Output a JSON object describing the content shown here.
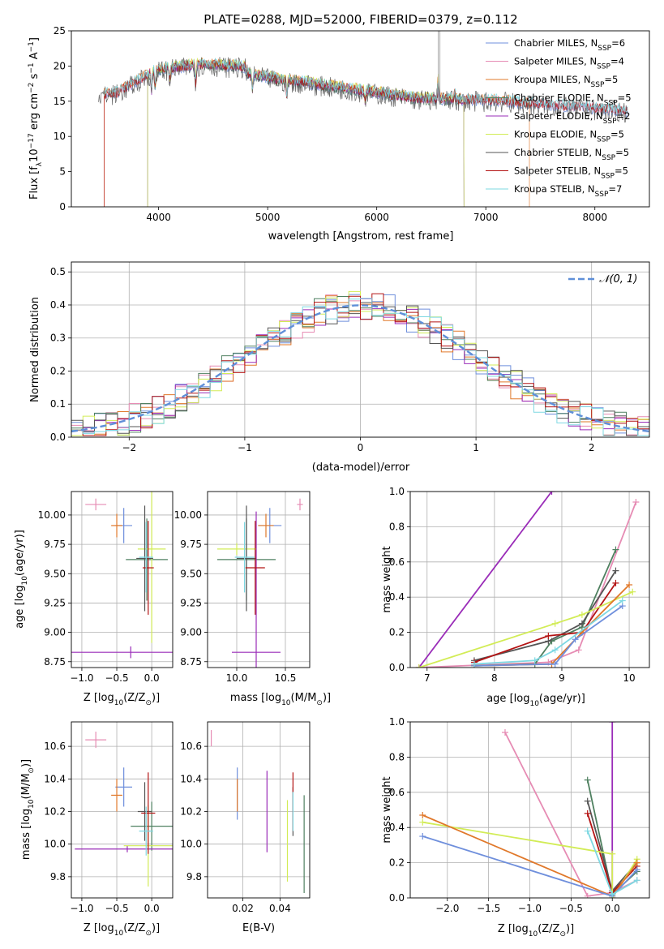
{
  "figure_title": "PLATE=0288, MJD=52000, FIBERID=0379, z=0.112",
  "colors": {
    "chabrier_miles": "#6f8fdc",
    "salpeter_miles": "#e68cb4",
    "kroupa_miles": "#e0782a",
    "chabrier_elodie": "#4f8060",
    "salpeter_elodie": "#9a2cb8",
    "kroupa_elodie": "#d2ec56",
    "chabrier_stelib": "#555555",
    "salpeter_stelib": "#b41414",
    "kroupa_stelib": "#7ed8e2",
    "gauss": "#5f8fd8"
  },
  "chart_data": [
    {
      "id": "spectrum",
      "type": "line",
      "xlabel": "wavelength [Angstrom, rest frame]",
      "ylabel": "Flux [f",
      "ylabel_sub": "λ",
      "ylabel_rest": "10",
      "ylabel_exp1": "−17",
      "ylabel_mid": " erg cm",
      "ylabel_exp2": "−2",
      "ylabel_s": " s",
      "ylabel_exp3": "−1",
      "ylabel_a": " A",
      "ylabel_exp4": "−1",
      "ylabel_end": "]",
      "xlim": [
        3200,
        8500
      ],
      "ylim": [
        0,
        25
      ],
      "xticks": [
        "4000",
        "5000",
        "6000",
        "7000",
        "8000"
      ],
      "yticks": [
        "0",
        "5",
        "10",
        "15",
        "20",
        "25"
      ],
      "legend_position": "top-right",
      "series": [
        {
          "key": "chabrier_miles",
          "name": "Chabrier MILES, N",
          "sub": "SSP",
          "n": "=6",
          "start": 3500,
          "end": 8300
        },
        {
          "key": "salpeter_miles",
          "name": "Salpeter MILES, N",
          "sub": "SSP",
          "n": "=4",
          "start": 3500,
          "end": 8300
        },
        {
          "key": "kroupa_miles",
          "name": "Kroupa MILES, N",
          "sub": "SSP",
          "n": "=5",
          "start": 3500,
          "end": 7400
        },
        {
          "key": "chabrier_elodie",
          "name": "Chabrier ELODIE, N",
          "sub": "SSP",
          "n": "=5",
          "start": 3900,
          "end": 6800
        },
        {
          "key": "salpeter_elodie",
          "name": "Salpeter ELODIE, N",
          "sub": "SSP",
          "n": "=2",
          "start": 3900,
          "end": 6800
        },
        {
          "key": "kroupa_elodie",
          "name": "Kroupa ELODIE, N",
          "sub": "SSP",
          "n": "=5",
          "start": 3900,
          "end": 6800
        },
        {
          "key": "chabrier_stelib",
          "name": "Chabrier STELIB, N",
          "sub": "SSP",
          "n": "=5",
          "start": 3450,
          "end": 8300
        },
        {
          "key": "salpeter_stelib",
          "name": "Salpeter STELIB, N",
          "sub": "SSP",
          "n": "=5",
          "start": 3500,
          "end": 8300
        },
        {
          "key": "kroupa_stelib",
          "name": "Kroupa STELIB, N",
          "sub": "SSP",
          "n": "=7",
          "start": 3500,
          "end": 8300
        }
      ]
    },
    {
      "id": "residuals",
      "type": "line",
      "xlabel": "(data-model)/error",
      "ylabel": "Normed distribution",
      "xlim": [
        -2.5,
        2.5
      ],
      "ylim": [
        0,
        0.53
      ],
      "grid": true,
      "xticks": [
        "−2",
        "−1",
        "0",
        "1",
        "2"
      ],
      "yticks": [
        "0.0",
        "0.1",
        "0.2",
        "0.3",
        "0.4",
        "0.5"
      ],
      "legend_position": "top-right",
      "legend_label": "𝒩(0, 1)",
      "bin_width": 0.1
    },
    {
      "id": "age_vs_z",
      "type": "scatter",
      "xlabel": "Z [log",
      "xlabel_sub": "10",
      "xlabel_rest": "(Z/Z",
      "xlabel_sub2": "⊙",
      "xlabel_end": ")]",
      "ylabel": "age  [log",
      "ylabel_sub": "10",
      "ylabel_rest": "(age/yr)]",
      "xlim": [
        -1.15,
        0.3
      ],
      "ylim": [
        8.7,
        10.2
      ],
      "xticks": [
        "−1.0",
        "−0.5",
        "0.0"
      ],
      "yticks": [
        "8.75",
        "9.00",
        "9.25",
        "9.50",
        "9.75",
        "10.00"
      ],
      "points": [
        {
          "key": "chabrier_miles",
          "x": -0.4,
          "y": 9.91,
          "xerr": 0.12,
          "yerr": 0.15
        },
        {
          "key": "kroupa_miles",
          "x": -0.5,
          "y": 9.91,
          "xerr": 0.08,
          "yerr": 0.1
        },
        {
          "key": "salpeter_miles",
          "x": -0.8,
          "y": 10.09,
          "xerr": 0.15,
          "yerr": 0.05
        },
        {
          "key": "chabrier_elodie",
          "x": -0.07,
          "y": 9.62,
          "xerr": 0.3,
          "yerr": 0.35
        },
        {
          "key": "salpeter_elodie",
          "x": -0.3,
          "y": 8.83,
          "xerr": 0.9,
          "yerr": 0.05
        },
        {
          "key": "kroupa_elodie",
          "x": 0.0,
          "y": 9.71,
          "xerr": 0.2,
          "yerr": 0.8
        },
        {
          "key": "chabrier_stelib",
          "x": -0.1,
          "y": 9.63,
          "xerr": 0.12,
          "yerr": 0.45
        },
        {
          "key": "salpeter_stelib",
          "x": -0.05,
          "y": 9.55,
          "xerr": 0.08,
          "yerr": 0.4
        },
        {
          "key": "kroupa_stelib",
          "x": -0.08,
          "y": 9.64,
          "xerr": 0.1,
          "yerr": 0.3
        }
      ]
    },
    {
      "id": "age_vs_mass",
      "type": "scatter",
      "xlabel": "mass [log",
      "xlabel_sub": "10",
      "xlabel_rest": "(M/M",
      "xlabel_sub2": "⊙",
      "xlabel_end": ")]",
      "xlim": [
        9.7,
        10.75
      ],
      "ylim": [
        8.7,
        10.2
      ],
      "xticks": [
        "10.0",
        "10.5"
      ],
      "yticks": [
        "8.75",
        "9.00",
        "9.25",
        "9.50",
        "9.75",
        "10.00"
      ],
      "points": [
        {
          "key": "chabrier_miles",
          "x": 10.34,
          "y": 9.91,
          "xerr": 0.12,
          "yerr": 0.15
        },
        {
          "key": "kroupa_miles",
          "x": 10.3,
          "y": 9.91,
          "xerr": 0.08,
          "yerr": 0.1
        },
        {
          "key": "salpeter_miles",
          "x": 10.65,
          "y": 10.09,
          "xerr": 0.03,
          "yerr": 0.05
        },
        {
          "key": "chabrier_elodie",
          "x": 10.1,
          "y": 9.62,
          "xerr": 0.3,
          "yerr": 0.35
        },
        {
          "key": "salpeter_elodie",
          "x": 10.2,
          "y": 8.83,
          "xerr": 0.25,
          "yerr": 1.2
        },
        {
          "key": "kroupa_elodie",
          "x": 10.0,
          "y": 9.71,
          "xerr": 0.2,
          "yerr": 0.05
        },
        {
          "key": "chabrier_stelib",
          "x": 10.1,
          "y": 9.63,
          "xerr": 0.1,
          "yerr": 0.45
        },
        {
          "key": "salpeter_stelib",
          "x": 10.19,
          "y": 9.55,
          "xerr": 0.1,
          "yerr": 0.4
        },
        {
          "key": "kroupa_stelib",
          "x": 10.08,
          "y": 9.64,
          "xerr": 0.1,
          "yerr": 0.3
        }
      ]
    },
    {
      "id": "weight_vs_age",
      "type": "line",
      "xlabel": "age  [log",
      "xlabel_sub": "10",
      "xlabel_rest": "(age/yr)]",
      "ylabel": "mass weight",
      "xlim": [
        6.75,
        10.3
      ],
      "ylim": [
        0,
        1
      ],
      "grid": true,
      "xticks": [
        "7",
        "8",
        "9",
        "10"
      ],
      "yticks": [
        "0.0",
        "0.2",
        "0.4",
        "0.6",
        "0.8",
        "1.0"
      ],
      "series": [
        {
          "key": "salpeter_elodie",
          "x": [
            6.88,
            8.85
          ],
          "y": [
            0.0,
            1.0
          ]
        },
        {
          "key": "salpeter_miles",
          "x": [
            6.88,
            8.8,
            9.25,
            10.1
          ],
          "y": [
            0.0,
            0.03,
            0.1,
            0.94
          ]
        },
        {
          "key": "chabrier_elodie",
          "x": [
            7.7,
            8.6,
            8.85,
            9.3,
            9.8
          ],
          "y": [
            0.01,
            0.02,
            0.15,
            0.23,
            0.67
          ]
        },
        {
          "key": "chabrier_stelib",
          "x": [
            7.7,
            8.8,
            9.3,
            9.8
          ],
          "y": [
            0.04,
            0.15,
            0.25,
            0.55
          ]
        },
        {
          "key": "salpeter_stelib",
          "x": [
            7.7,
            8.8,
            9.3,
            9.8
          ],
          "y": [
            0.03,
            0.18,
            0.2,
            0.48
          ]
        },
        {
          "key": "kroupa_elodie",
          "x": [
            6.88,
            8.9,
            9.3,
            10.05
          ],
          "y": [
            0.0,
            0.25,
            0.3,
            0.43
          ]
        },
        {
          "key": "kroupa_miles",
          "x": [
            7.7,
            8.85,
            9.3,
            10.0
          ],
          "y": [
            0.01,
            0.02,
            0.2,
            0.47
          ]
        },
        {
          "key": "chabrier_miles",
          "x": [
            7.7,
            8.9,
            9.2,
            9.9
          ],
          "y": [
            0.01,
            0.02,
            0.16,
            0.35
          ]
        },
        {
          "key": "kroupa_stelib",
          "x": [
            7.7,
            8.6,
            8.9,
            9.9
          ],
          "y": [
            0.02,
            0.04,
            0.1,
            0.38
          ]
        }
      ]
    },
    {
      "id": "mass_vs_z",
      "type": "scatter",
      "xlabel": "Z [log",
      "xlabel_sub": "10",
      "xlabel_rest": "(Z/Z",
      "xlabel_sub2": "⊙",
      "xlabel_end": ")]",
      "ylabel": "mass [log",
      "ylabel_sub": "10",
      "ylabel_rest": "(M/M",
      "ylabel_sub2": "⊙",
      "ylabel_end": ")]",
      "xlim": [
        -1.15,
        0.3
      ],
      "ylim": [
        9.67,
        10.75
      ],
      "xticks": [
        "−1.0",
        "−0.5",
        "0.0"
      ],
      "yticks": [
        "9.8",
        "10.0",
        "10.2",
        "10.4",
        "10.6"
      ],
      "points": [
        {
          "key": "chabrier_miles",
          "x": -0.4,
          "y": 10.35,
          "xerr": 0.12,
          "yerr": 0.12
        },
        {
          "key": "kroupa_miles",
          "x": -0.5,
          "y": 10.3,
          "xerr": 0.08,
          "yerr": 0.1
        },
        {
          "key": "salpeter_miles",
          "x": -0.8,
          "y": 10.64,
          "xerr": 0.15,
          "yerr": 0.05
        },
        {
          "key": "chabrier_elodie",
          "x": 0.0,
          "y": 10.11,
          "xerr": 0.3,
          "yerr": 0.15
        },
        {
          "key": "salpeter_elodie",
          "x": -0.35,
          "y": 9.97,
          "xerr": 0.75,
          "yerr": 0.02
        },
        {
          "key": "kroupa_elodie",
          "x": -0.05,
          "y": 9.99,
          "xerr": 0.35,
          "yerr": 0.25
        },
        {
          "key": "chabrier_stelib",
          "x": -0.1,
          "y": 10.2,
          "xerr": 0.1,
          "yerr": 0.18
        },
        {
          "key": "salpeter_stelib",
          "x": -0.05,
          "y": 10.19,
          "xerr": 0.1,
          "yerr": 0.25
        },
        {
          "key": "kroupa_stelib",
          "x": -0.08,
          "y": 10.08,
          "xerr": 0.1,
          "yerr": 0.15
        }
      ]
    },
    {
      "id": "mass_vs_ebv",
      "type": "scatter",
      "xlabel": "E(B-V)",
      "xlim": [
        0.001,
        0.056
      ],
      "ylim": [
        9.67,
        10.75
      ],
      "xticks": [
        "0.02",
        "0.04"
      ],
      "yticks": [
        "9.8",
        "10.0",
        "10.2",
        "10.4",
        "10.6"
      ],
      "points": [
        {
          "key": "chabrier_miles",
          "x": 0.017,
          "y": 10.31,
          "yerr": 0.16
        },
        {
          "key": "kroupa_miles",
          "x": 0.017,
          "y": 10.3,
          "yerr": 0.1
        },
        {
          "key": "salpeter_miles",
          "x": 0.003,
          "y": 10.65,
          "yerr": 0.05
        },
        {
          "key": "chabrier_elodie",
          "x": 0.053,
          "y": 10.0,
          "yerr": 0.3
        },
        {
          "key": "salpeter_elodie",
          "x": 0.033,
          "y": 10.2,
          "yerr": 0.25
        },
        {
          "key": "kroupa_elodie",
          "x": 0.044,
          "y": 10.02,
          "yerr": 0.25
        },
        {
          "key": "chabrier_stelib",
          "x": 0.047,
          "y": 10.2,
          "yerr": 0.15
        },
        {
          "key": "salpeter_stelib",
          "x": 0.047,
          "y": 10.26,
          "yerr": 0.18
        },
        {
          "key": "kroupa_stelib",
          "x": 0.047,
          "y": 10.2,
          "yerr": 0.12
        }
      ]
    },
    {
      "id": "weight_vs_z",
      "type": "line",
      "xlabel": "Z [log",
      "xlabel_sub": "10",
      "xlabel_rest": "(Z/Z",
      "xlabel_sub2": "⊙",
      "xlabel_end": ")]",
      "ylabel": "mass weight",
      "xlim": [
        -2.45,
        0.45
      ],
      "ylim": [
        0,
        1
      ],
      "grid": true,
      "xticks": [
        "−2.0",
        "−1.5",
        "−1.0",
        "−0.5",
        "0.0"
      ],
      "yticks": [
        "0.0",
        "0.2",
        "0.4",
        "0.6",
        "0.8",
        "1.0"
      ],
      "series": [
        {
          "key": "salpeter_miles",
          "x": [
            -1.3,
            -0.3,
            0.0,
            0.3
          ],
          "y": [
            0.94,
            0.01,
            0.03,
            0.1
          ]
        },
        {
          "key": "salpeter_elodie",
          "x": [
            0.0,
            0.0
          ],
          "y": [
            0.0,
            1.0
          ]
        },
        {
          "key": "chabrier_elodie",
          "x": [
            -0.3,
            0.0,
            0.3
          ],
          "y": [
            0.67,
            0.02,
            0.15
          ]
        },
        {
          "key": "chabrier_stelib",
          "x": [
            -0.3,
            0.0,
            0.3
          ],
          "y": [
            0.55,
            0.04,
            0.2
          ]
        },
        {
          "key": "salpeter_stelib",
          "x": [
            -0.3,
            0.0,
            0.3
          ],
          "y": [
            0.48,
            0.03,
            0.18
          ]
        },
        {
          "key": "kroupa_elodie",
          "x": [
            -2.3,
            0.0,
            0.0,
            0.3
          ],
          "y": [
            0.43,
            0.25,
            0.0,
            0.22
          ]
        },
        {
          "key": "kroupa_miles",
          "x": [
            -2.3,
            0.0,
            0.3
          ],
          "y": [
            0.47,
            0.01,
            0.2
          ]
        },
        {
          "key": "chabrier_miles",
          "x": [
            -2.3,
            0.0,
            0.3
          ],
          "y": [
            0.35,
            0.01,
            0.16
          ]
        },
        {
          "key": "kroupa_stelib",
          "x": [
            -0.3,
            0.0,
            0.3
          ],
          "y": [
            0.38,
            0.02,
            0.1
          ]
        }
      ]
    }
  ]
}
